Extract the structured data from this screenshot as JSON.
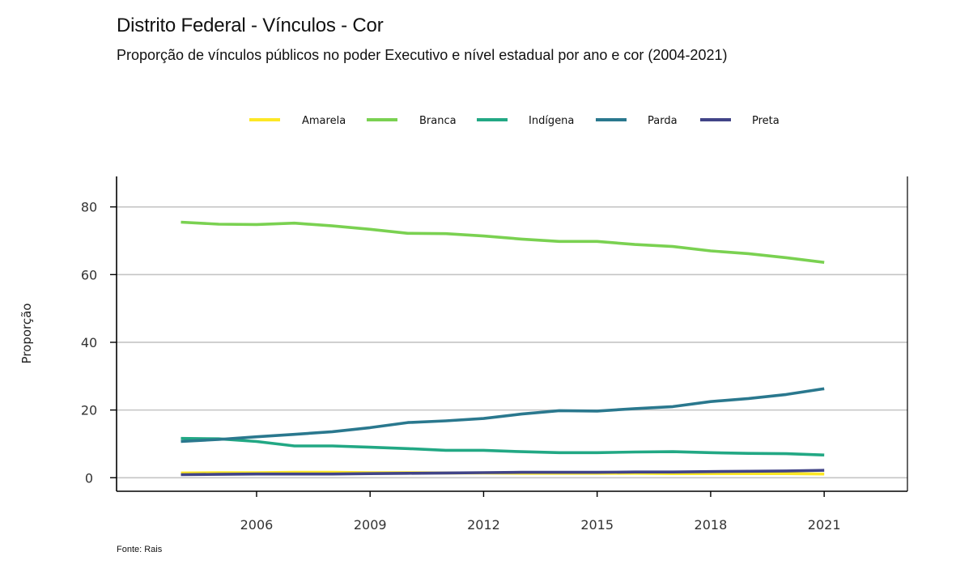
{
  "title": "Distrito Federal - Vínculos - Cor",
  "subtitle": "Proporção de vínculos públicos no poder Executivo e nível estadual por ano e cor (2004-2021)",
  "source": "Fonte: Rais",
  "chart_data": {
    "type": "line",
    "xlabel": "",
    "ylabel": "Proporção",
    "xlim": [
      2002.3,
      2023.2
    ],
    "ylim": [
      -4,
      89
    ],
    "x_ticks": [
      2006,
      2009,
      2012,
      2015,
      2018,
      2021
    ],
    "y_ticks": [
      0,
      20,
      40,
      60,
      80
    ],
    "grid": "horizontal",
    "legend_position": "top",
    "x": [
      2004,
      2005,
      2006,
      2007,
      2008,
      2009,
      2010,
      2011,
      2012,
      2013,
      2014,
      2015,
      2016,
      2017,
      2018,
      2019,
      2020,
      2021
    ],
    "series": [
      {
        "name": "Amarela",
        "color": "#FDE725",
        "values": [
          1.4,
          1.5,
          1.5,
          1.6,
          1.6,
          1.5,
          1.5,
          1.4,
          1.4,
          1.3,
          1.3,
          1.3,
          1.3,
          1.2,
          1.2,
          1.2,
          1.2,
          1.1
        ]
      },
      {
        "name": "Branca",
        "color": "#7AD151",
        "values": [
          75.5,
          74.9,
          74.8,
          75.2,
          74.4,
          73.4,
          72.2,
          72.1,
          71.4,
          70.5,
          69.8,
          69.8,
          68.9,
          68.3,
          67.0,
          66.2,
          65.0,
          63.6
        ]
      },
      {
        "name": "Indígena",
        "color": "#22A884",
        "values": [
          11.6,
          11.5,
          10.7,
          9.4,
          9.4,
          9.0,
          8.6,
          8.1,
          8.1,
          7.7,
          7.4,
          7.4,
          7.6,
          7.7,
          7.4,
          7.2,
          7.1,
          6.7
        ]
      },
      {
        "name": "Parda",
        "color": "#2A788E",
        "values": [
          10.7,
          11.3,
          12.1,
          12.8,
          13.6,
          14.8,
          16.3,
          16.8,
          17.5,
          18.8,
          19.8,
          19.7,
          20.4,
          21.0,
          22.5,
          23.4,
          24.6,
          26.3
        ]
      },
      {
        "name": "Preta",
        "color": "#414487",
        "values": [
          0.9,
          1.0,
          1.1,
          1.1,
          1.1,
          1.2,
          1.3,
          1.4,
          1.5,
          1.6,
          1.6,
          1.6,
          1.7,
          1.7,
          1.8,
          1.9,
          2.0,
          2.2
        ]
      }
    ]
  }
}
